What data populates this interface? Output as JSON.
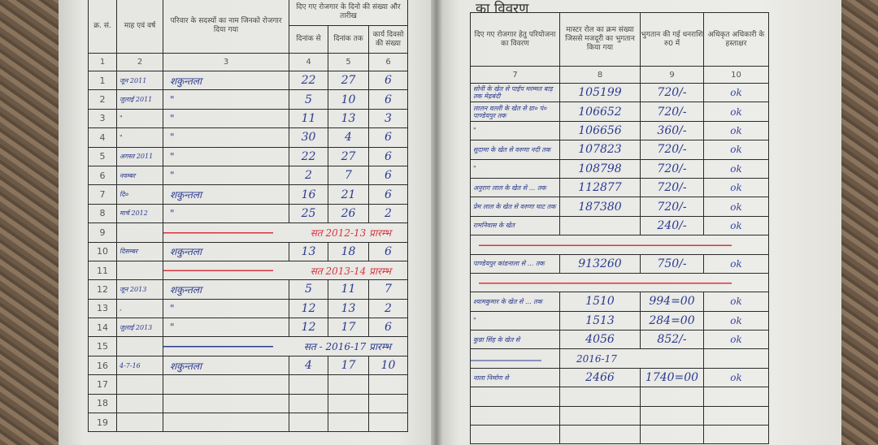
{
  "left": {
    "headers": {
      "sn": "क्र. सं.",
      "month": "माह एवं वर्ष",
      "name": "परिवार के सदस्यों का नाम जिनको रोजगार दिया गया",
      "employment_group": "दिए गए रोजगार के दिनो की संख्या और तारीख",
      "from": "दिनांक से",
      "to": "दिनांक तक",
      "days": "कार्य दिवसो की संख्या"
    },
    "col_numbers": [
      "1",
      "2",
      "3",
      "4",
      "5",
      "6"
    ],
    "rows": [
      {
        "sn": "1",
        "month": "जून 2011",
        "name": "शकुन्तला",
        "from": "22",
        "to": "27",
        "days": "6"
      },
      {
        "sn": "2",
        "month": "जुलाई 2011",
        "name": "\"",
        "from": "5",
        "to": "10",
        "days": "6"
      },
      {
        "sn": "3",
        "month": "\"",
        "name": "\"",
        "from": "11",
        "to": "13",
        "days": "3"
      },
      {
        "sn": "4",
        "month": "\"",
        "name": "\"",
        "from": "30",
        "to": "4",
        "days": "6"
      },
      {
        "sn": "5",
        "month": "अगस्त 2011",
        "name": "\"",
        "from": "22",
        "to": "27",
        "days": "6"
      },
      {
        "sn": "6",
        "month": "नवम्बर",
        "name": "\"",
        "from": "2",
        "to": "7",
        "days": "6"
      },
      {
        "sn": "7",
        "month": "दि०",
        "name": "शकुन्तला",
        "from": "16",
        "to": "21",
        "days": "6"
      },
      {
        "sn": "8",
        "month": "मार्च 2012",
        "name": "\"",
        "from": "25",
        "to": "26",
        "days": "2"
      },
      {
        "sn": "9",
        "span": "सत 2012-13 प्रारम्भ",
        "span_color": "red"
      },
      {
        "sn": "10",
        "month": "दिसम्बर",
        "name": "शकुन्तला",
        "from": "13",
        "to": "18",
        "days": "6"
      },
      {
        "sn": "11",
        "span": "सत 2013-14 प्रारम्भ",
        "span_color": "red"
      },
      {
        "sn": "12",
        "month": "जून 2013",
        "name": "शकुन्तला",
        "from": "5",
        "to": "11",
        "days": "7"
      },
      {
        "sn": "13",
        "month": ",",
        "name": "\"",
        "from": "12",
        "to": "13",
        "days": "2"
      },
      {
        "sn": "14",
        "month": "जुलाई 2013",
        "name": "\"",
        "from": "12",
        "to": "17",
        "days": "6"
      },
      {
        "sn": "15",
        "span": "सत - 2016-17 प्रारम्भ",
        "span_color": "blue"
      },
      {
        "sn": "16",
        "month": "4-7-16",
        "name": "शकुन्तला",
        "from": "4",
        "to": "17",
        "days": "10"
      },
      {
        "sn": "17"
      },
      {
        "sn": "18"
      },
      {
        "sn": "19"
      }
    ]
  },
  "right": {
    "title": "का विवरण",
    "headers": {
      "project": "दिए गए रोजगार हेतु परियोजना का विवरण",
      "muster_roll": "मास्टर रोल का क्रम संख्या जिससे मजदूरी का भुगतान किया गया",
      "amount": "भुगतान की गई धनराशि रु0 में",
      "signature": "अधिकृत अधिकारी के हस्ताक्षर"
    },
    "col_numbers": [
      "7",
      "8",
      "9",
      "10"
    ],
    "rows": [
      {
        "project": "सोनी के खेत से पाईप मरम्मत बाड़ तक मेढ़बंदी",
        "mr": "105199",
        "amount": "720/-",
        "sign": "ok"
      },
      {
        "project": "लालन वल्ली के खेत से ग्रा० पं० पाण्डेयपुर तक",
        "mr": "106652",
        "amount": "720/-",
        "sign": "ok"
      },
      {
        "project": "\"",
        "mr": "106656",
        "amount": "360/-",
        "sign": "ok"
      },
      {
        "project": "सुदामा के खेत से वरुणा नदी तक",
        "mr": "107823",
        "amount": "720/-",
        "sign": "ok"
      },
      {
        "project": "\"",
        "mr": "108798",
        "amount": "720/-",
        "sign": "ok"
      },
      {
        "project": "अनुराग लाल के खेत से ... तक",
        "mr": "112877",
        "amount": "720/-",
        "sign": "ok"
      },
      {
        "project": "प्रेम लाल के खेत से वरुणा घाट तक",
        "mr": "187380",
        "amount": "720/-",
        "sign": "ok"
      },
      {
        "project": "रामनिवास के खेत",
        "mr": "",
        "amount": "240/-",
        "sign": "ok"
      },
      {
        "redline": true
      },
      {
        "project": "पाण्डेयपुर कांडनाला से ... तक",
        "mr": "913260",
        "amount": "750/-",
        "sign": "ok"
      },
      {
        "redline": true
      },
      {
        "project": "श्यामकुमार के खेत से ... तक",
        "mr": "1510",
        "amount": "994=00",
        "sign": "ok"
      },
      {
        "project": "\"",
        "mr": "1513",
        "amount": "284=00",
        "sign": "ok"
      },
      {
        "project": "कुन्ना सिंह के खेत से",
        "mr": "4056",
        "amount": "852/-",
        "sign": "ok"
      },
      {
        "span": "2016-17"
      },
      {
        "project": "नाला निर्माण से",
        "mr": "2466",
        "amount": "1740=00",
        "sign": "ok"
      },
      {},
      {},
      {}
    ]
  }
}
